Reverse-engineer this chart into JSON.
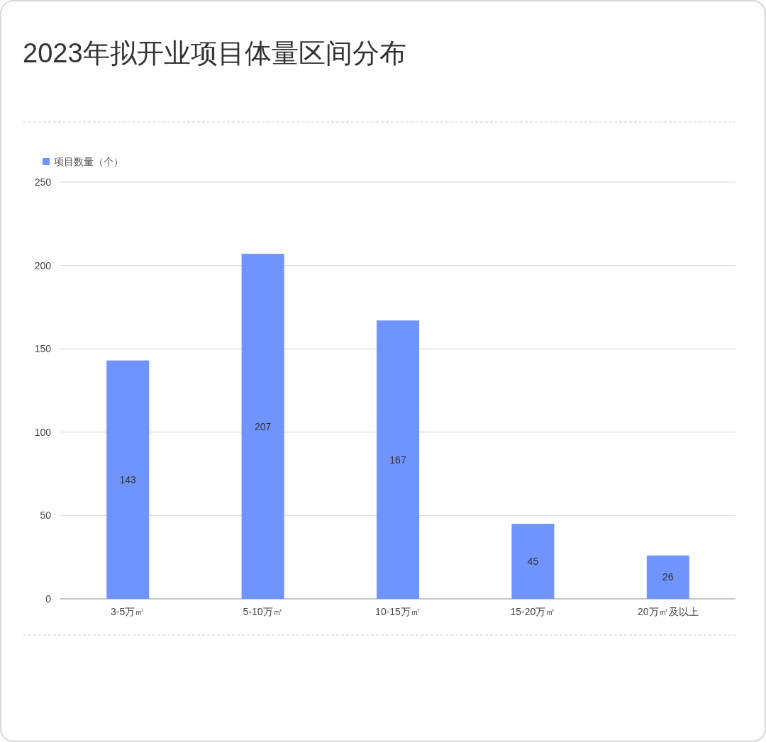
{
  "chart_data": {
    "type": "bar",
    "title": "2023年拟开业项目体量区间分布",
    "categories": [
      "3-5万㎡",
      "5-10万㎡",
      "10-15万㎡",
      "15-20万㎡",
      "20万㎡及以上"
    ],
    "series": [
      {
        "name": "项目数量（个）",
        "color": "#6f94fd",
        "values": [
          143,
          207,
          167,
          45,
          26
        ]
      }
    ],
    "ylim": [
      0,
      250
    ],
    "yticks": [
      0,
      50,
      100,
      150,
      200,
      250
    ],
    "grid": "y",
    "legend": "top left",
    "data_labels": true
  }
}
